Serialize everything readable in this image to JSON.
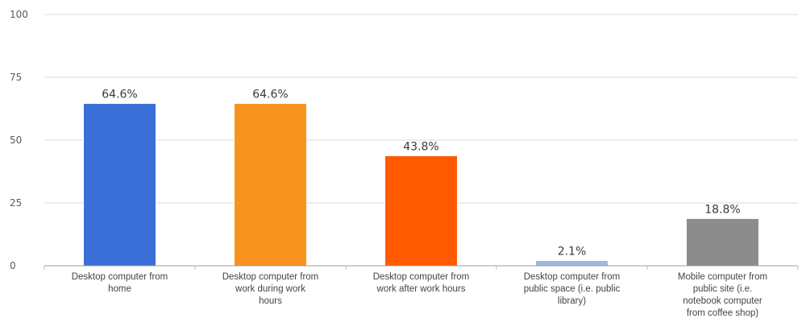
{
  "chart_data": {
    "type": "bar",
    "title": "",
    "xlabel": "",
    "ylabel": "",
    "ylim": [
      0,
      100
    ],
    "yticks": [
      0,
      25,
      50,
      75,
      100
    ],
    "grid": true,
    "legend": "none",
    "categories": [
      "Desktop computer from home",
      "Desktop computer from work during work hours",
      "Desktop computer from work after work hours",
      "Desktop computer from public space (i.e. public library)",
      "Mobile computer from public site (i.e. notebook computer from coffee shop)"
    ],
    "category_label_lines": [
      [
        "Desktop computer from",
        "home"
      ],
      [
        "Desktop computer from",
        "work during work",
        "hours"
      ],
      [
        "Desktop computer from",
        "work after work hours"
      ],
      [
        "Desktop computer from",
        "public space (i.e. public",
        "library)"
      ],
      [
        "Mobile computer from",
        "public site (i.e.",
        "notebook computer",
        "from coffee shop)"
      ]
    ],
    "values": [
      64.6,
      64.6,
      43.8,
      2.1,
      18.8
    ],
    "data_labels": [
      "64.6%",
      "64.6%",
      "43.8%",
      "2.1%",
      "18.8%"
    ],
    "colors": [
      "#3a6fd8",
      "#f7931e",
      "#ff5a00",
      "#9fb8e0",
      "#8c8c8c"
    ]
  }
}
